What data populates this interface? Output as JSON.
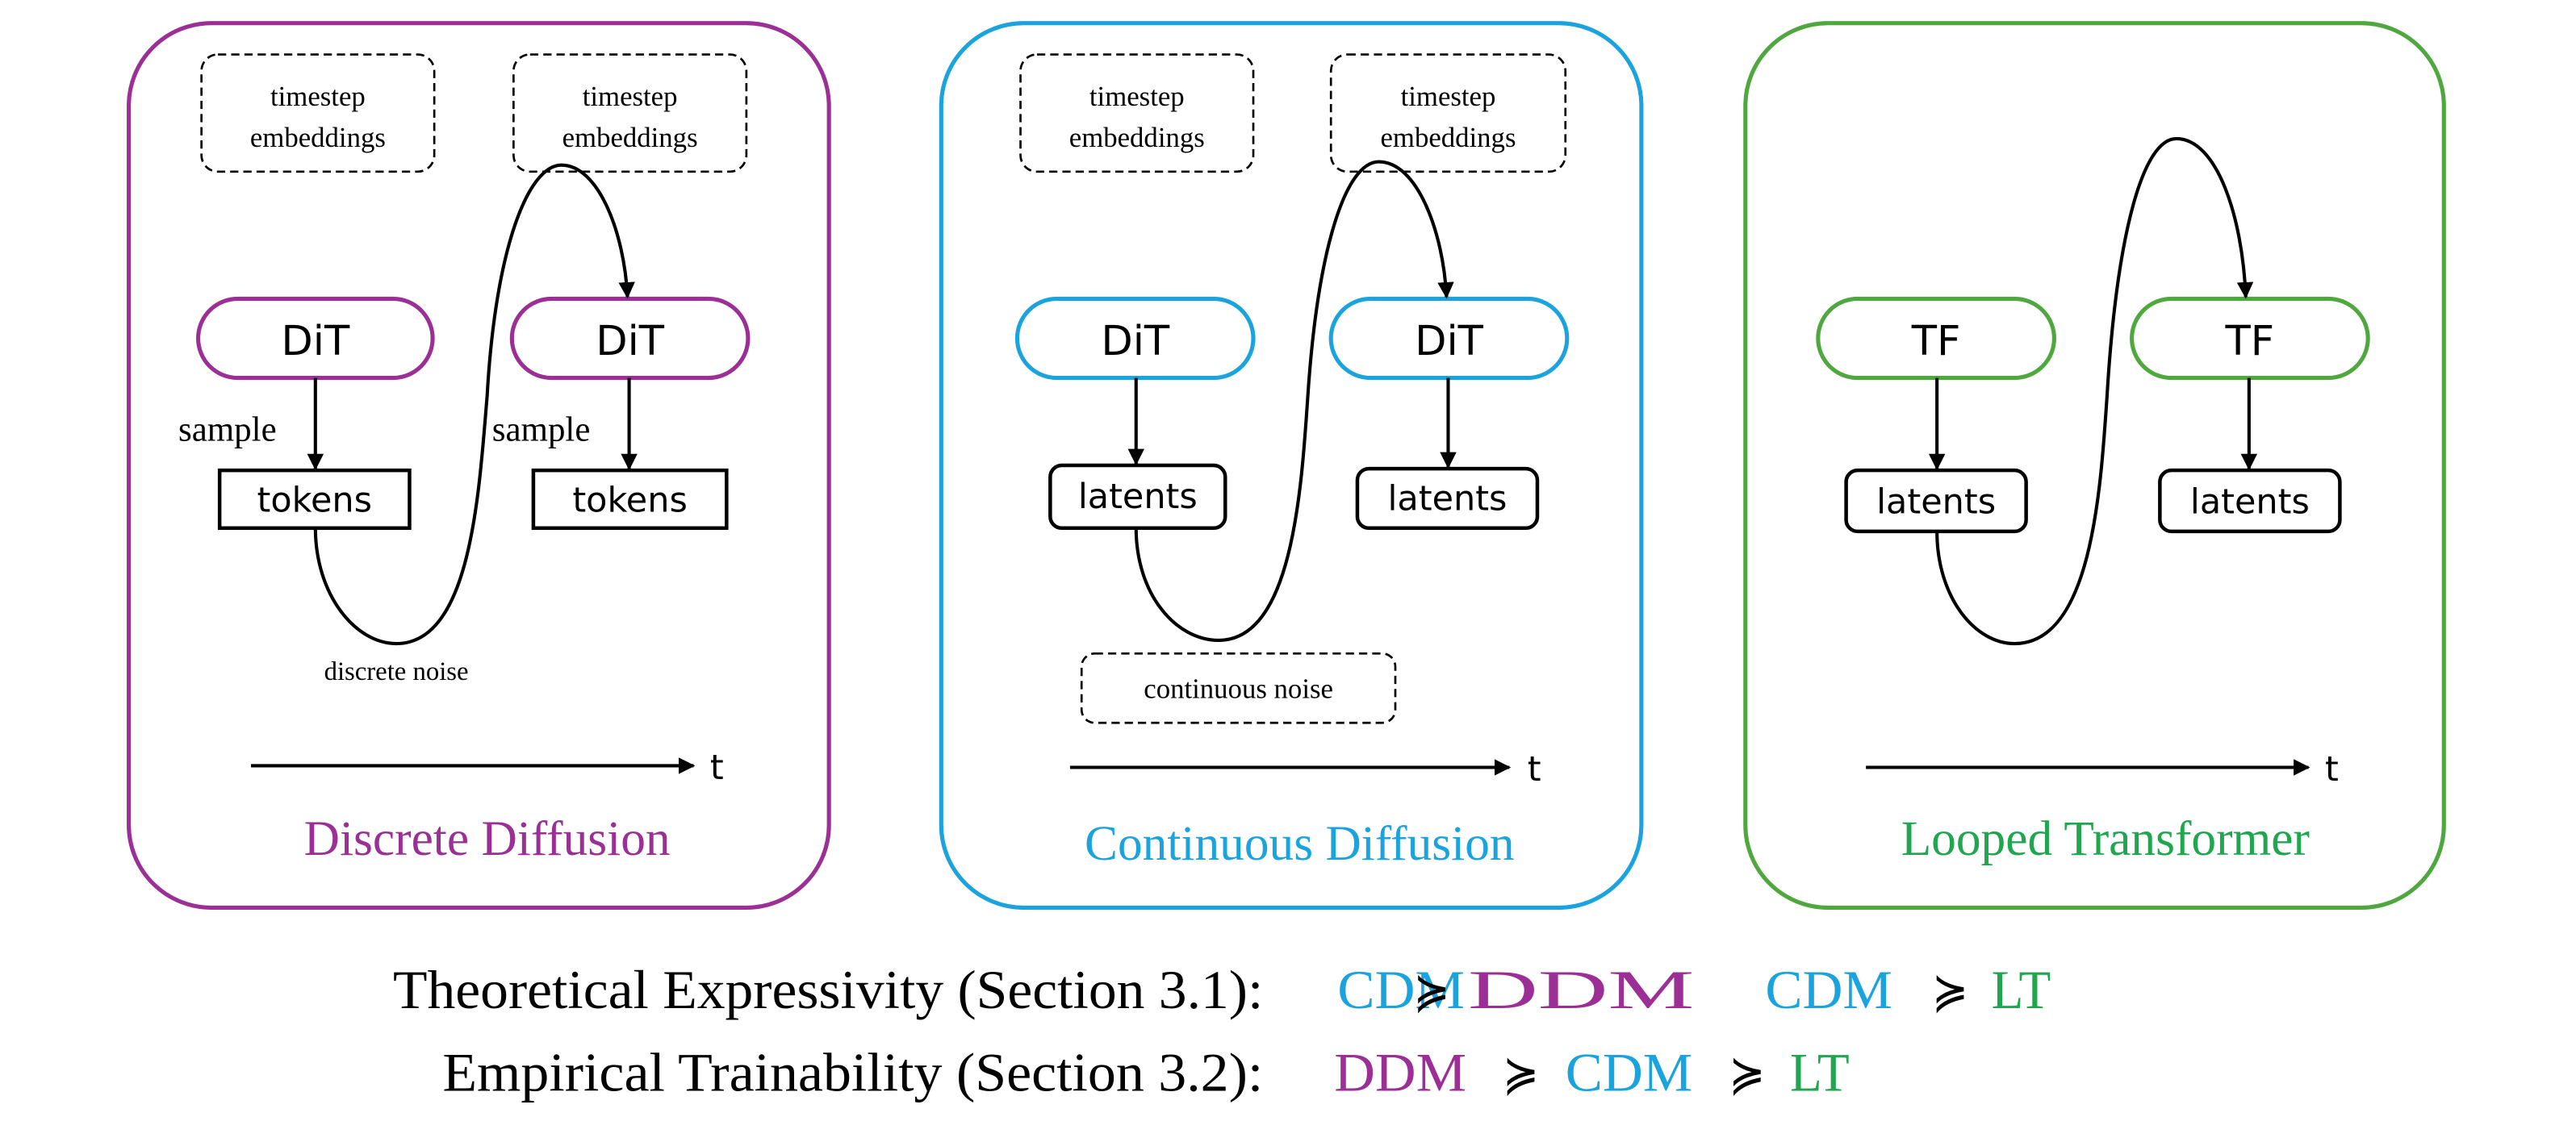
{
  "colors": {
    "ddm": "#9b2f96",
    "cdm": "#1ba3dd",
    "lt_box": "#4fa83d",
    "lt_text": "#1fa64f",
    "ink": "#000000"
  },
  "panels": [
    {
      "title": "Discrete Diffusion",
      "timestep_1": [
        "timestep",
        "embeddings"
      ],
      "timestep_2": [
        "timestep",
        "embeddings"
      ],
      "model_1": "DiT",
      "model_2": "DiT",
      "state_1": "tokens",
      "state_2": "tokens",
      "edge_label_1": "sample",
      "edge_label_2": "sample",
      "noise_label": "discrete noise",
      "axis_label": "t"
    },
    {
      "title": "Continuous Diffusion",
      "timestep_1": [
        "timestep",
        "embeddings"
      ],
      "timestep_2": [
        "timestep",
        "embeddings"
      ],
      "model_1": "DiT",
      "model_2": "DiT",
      "state_1": "latents",
      "state_2": "latents",
      "noise_label": "continuous noise",
      "axis_label": "t"
    },
    {
      "title": "Looped Transformer",
      "model_1": "TF",
      "model_2": "TF",
      "state_1": "latents",
      "state_2": "latents",
      "axis_label": "t"
    }
  ],
  "summary": {
    "row1": {
      "label": "Theoretical Expressivity (Section 3.1):",
      "terms": [
        "CDM",
        "≽",
        "DDM",
        "CDM",
        "≽",
        "LT"
      ]
    },
    "row2": {
      "label": "Empirical Trainability (Section 3.2):",
      "terms": [
        "DDM",
        "≽",
        "CDM",
        "≽",
        "LT"
      ]
    }
  }
}
